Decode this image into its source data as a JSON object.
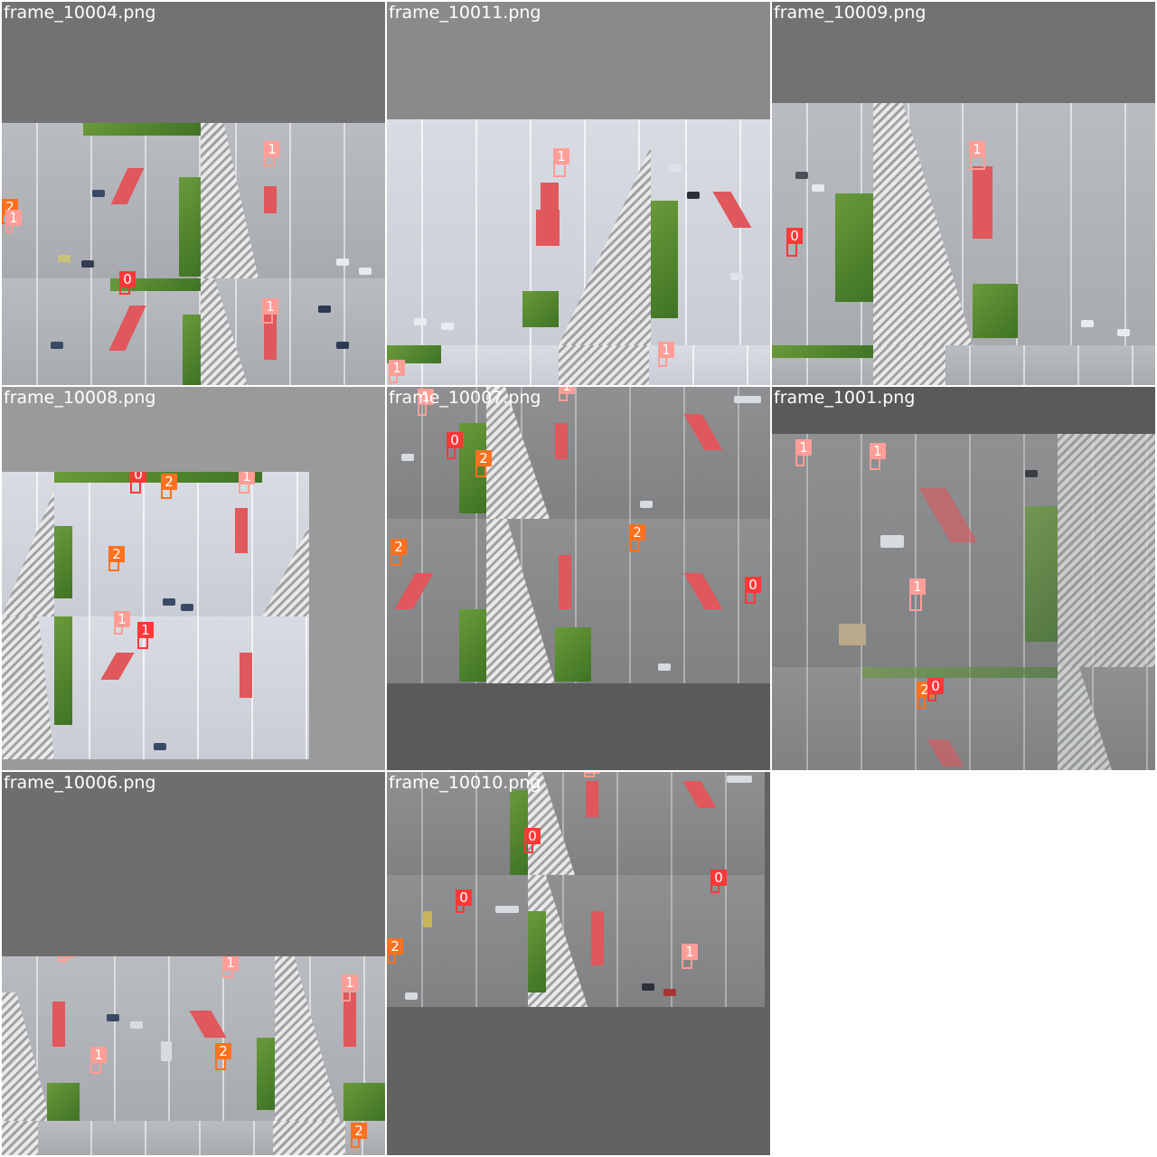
{
  "tiles": [
    {
      "title": "frame_10004.png",
      "bg": "#727272",
      "detections": [
        {
          "label": "1",
          "cls": 1
        },
        {
          "label": "2",
          "cls": 2
        },
        {
          "label": "1",
          "cls": 1
        },
        {
          "label": "0",
          "cls": 0
        },
        {
          "label": "1",
          "cls": 1
        }
      ]
    },
    {
      "title": "frame_10011.png",
      "bg": "#8a8a8a",
      "detections": [
        {
          "label": "1",
          "cls": 1
        },
        {
          "label": "1",
          "cls": 1
        },
        {
          "label": "1",
          "cls": 1
        }
      ]
    },
    {
      "title": "frame_10009.png",
      "bg": "#727272",
      "detections": [
        {
          "label": "1",
          "cls": 1
        },
        {
          "label": "0",
          "cls": 0
        }
      ]
    },
    {
      "title": "frame_10008.png",
      "bg": "#9a9a9a",
      "detections": [
        {
          "label": "0",
          "cls": 0
        },
        {
          "label": "2",
          "cls": 2
        },
        {
          "label": "1",
          "cls": 1
        },
        {
          "label": "2",
          "cls": 2
        },
        {
          "label": "1",
          "cls": 1
        },
        {
          "label": "1",
          "cls": 1
        }
      ]
    },
    {
      "title": "frame_10007.png",
      "bg": "#5a5a5a",
      "detections": [
        {
          "label": "1",
          "cls": 1
        },
        {
          "label": "1",
          "cls": 1
        },
        {
          "label": "0",
          "cls": 0
        },
        {
          "label": "2",
          "cls": 2
        },
        {
          "label": "2",
          "cls": 2
        },
        {
          "label": "2",
          "cls": 2
        },
        {
          "label": "0",
          "cls": 0
        }
      ]
    },
    {
      "title": "frame_1001.png",
      "bg": "#5a5a5a",
      "detections": [
        {
          "label": "1",
          "cls": 1
        },
        {
          "label": "1",
          "cls": 1
        },
        {
          "label": "1",
          "cls": 1
        },
        {
          "label": "2",
          "cls": 2
        },
        {
          "label": "0",
          "cls": 0
        }
      ]
    },
    {
      "title": "frame_10006.png",
      "bg": "#6e6e6e",
      "detections": [
        {
          "label": "1",
          "cls": 1
        },
        {
          "label": "1",
          "cls": 1
        },
        {
          "label": "1",
          "cls": 1
        },
        {
          "label": "1",
          "cls": 1
        },
        {
          "label": "2",
          "cls": 2
        },
        {
          "label": "2",
          "cls": 2
        }
      ]
    },
    {
      "title": "frame_10010.png",
      "bg": "#626262",
      "detections": [
        {
          "label": "1",
          "cls": 1
        },
        {
          "label": "0",
          "cls": 0
        },
        {
          "label": "0",
          "cls": 0
        },
        {
          "label": "0",
          "cls": 0
        },
        {
          "label": "2",
          "cls": 2
        },
        {
          "label": "1",
          "cls": 1
        }
      ]
    }
  ],
  "class_colors": {
    "0": "#ff3838",
    "1": "#ff9d97",
    "2": "#ff701f"
  }
}
